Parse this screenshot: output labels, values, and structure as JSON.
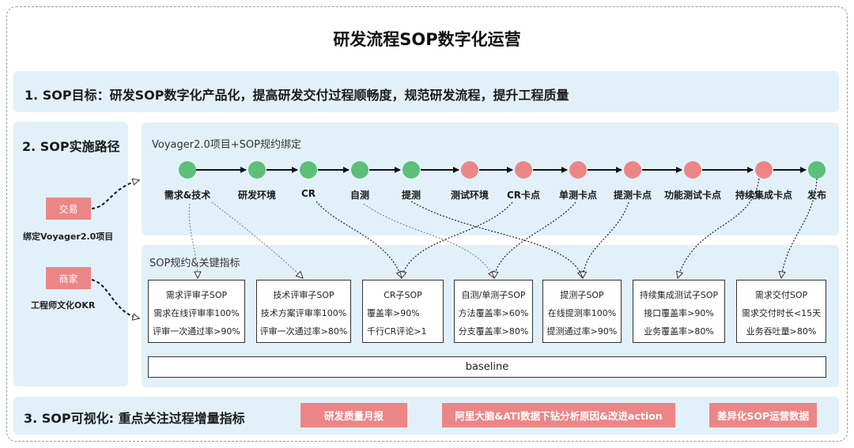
{
  "title": "研发流程SOP数字化运营",
  "goal": {
    "text": "1. SOP目标：研发SOP数字化产品化，提高研发交付过程顺畅度，规范研发流程，提升工程质量"
  },
  "path": {
    "title": "2. SOP实施路径",
    "tags": [
      {
        "label": "交易",
        "caption": "绑定Voyager2.0项目"
      },
      {
        "label": "商家",
        "caption": "工程师文化OKR"
      }
    ]
  },
  "binding": {
    "title": "Voyager2.0项目+SOP规约绑定",
    "stages": [
      {
        "label": "需求&技术",
        "status": "green"
      },
      {
        "label": "研发环境",
        "status": "green"
      },
      {
        "label": "CR",
        "status": "green"
      },
      {
        "label": "自测",
        "status": "green"
      },
      {
        "label": "提测",
        "status": "green"
      },
      {
        "label": "测试环境",
        "status": "red"
      },
      {
        "label": "CR卡点",
        "status": "red"
      },
      {
        "label": "单测卡点",
        "status": "red"
      },
      {
        "label": "提测卡点",
        "status": "red"
      },
      {
        "label": "功能测试卡点",
        "status": "red"
      },
      {
        "label": "持续集成卡点",
        "status": "red"
      },
      {
        "label": "发布",
        "status": "green"
      }
    ]
  },
  "metrics": {
    "title": "SOP规约&关键指标",
    "boxes": [
      {
        "lines": [
          "需求评审子SOP",
          "需求在线评审率100%",
          "评审一次通过率>90%"
        ]
      },
      {
        "lines": [
          "技术评审子SOP",
          "技术方案评审率100%",
          "评审一次通过率>80%"
        ]
      },
      {
        "lines": [
          "CR子SOP",
          "覆盖率>90%",
          "千行CR评论>1"
        ]
      },
      {
        "lines": [
          "自测/单测子SOP",
          "方法覆盖率>60%",
          "分支覆盖率>80%"
        ]
      },
      {
        "lines": [
          "提测子SOP",
          "在线提测率100%",
          "提测通过率>90%"
        ]
      },
      {
        "lines": [
          "持续集成测试子SOP",
          "接口覆盖率>90%",
          "业务覆盖率>80%"
        ]
      },
      {
        "lines": [
          "需求交付SOP",
          "需求交付时长<15天",
          "业务吞吐量>80%"
        ]
      }
    ],
    "baseline": "baseline"
  },
  "visualization": {
    "title": "3. SOP可视化: 重点关注过程增量指标",
    "tags": [
      "研发质量月报",
      "阿里大脑&ATI数据下钻分析原因&改进action",
      "差异化SOP运营数据"
    ]
  },
  "colors": {
    "panel": "#e2f1f9",
    "node_green": "#5cbf7a",
    "node_red": "#ec8686",
    "tag": "#ec8686"
  }
}
